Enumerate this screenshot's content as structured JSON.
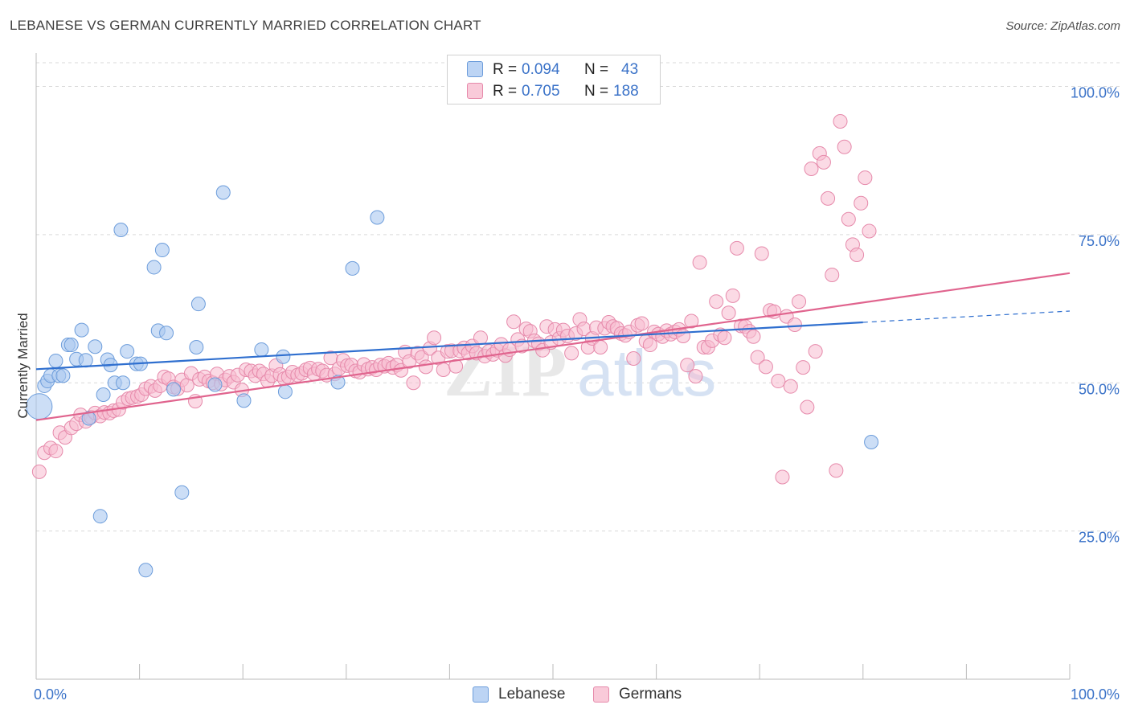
{
  "header": {
    "title": "LEBANESE VS GERMAN CURRENTLY MARRIED CORRELATION CHART",
    "source": "Source: ZipAtlas.com"
  },
  "legend_top": {
    "rows": [
      {
        "r_label": "R =",
        "r_value": "0.094",
        "n_label": "N =",
        "n_value": "43"
      },
      {
        "r_label": "R =",
        "r_value": "0.705",
        "n_label": "N =",
        "n_value": "188"
      }
    ]
  },
  "legend_bottom": {
    "items": [
      "Lebanese",
      "Germans"
    ]
  },
  "watermark": {
    "zip": "ZIP",
    "atlas": "atlas"
  },
  "colors": {
    "lebanese_fill": "#aac8f0",
    "lebanese_stroke": "#6d9ddb",
    "lebanese_line": "#2f6fcf",
    "german_fill": "#f7bcd0",
    "german_stroke": "#e68aab",
    "german_line": "#e0648e",
    "tick_label": "#3a72c8",
    "grid": "#d9d9d9"
  },
  "chart_data": {
    "type": "scatter",
    "title": "LEBANESE VS GERMAN CURRENTLY MARRIED CORRELATION CHART",
    "xlabel": "",
    "ylabel": "Currently Married",
    "xlim": [
      0,
      100
    ],
    "ylim": [
      0,
      104
    ],
    "x_tick_labels": [
      {
        "value": 0,
        "label": "0.0%"
      },
      {
        "value": 100,
        "label": "100.0%"
      }
    ],
    "y_tick_labels": [
      {
        "value": 25,
        "label": "25.0%"
      },
      {
        "value": 50,
        "label": "50.0%"
      },
      {
        "value": 75,
        "label": "75.0%"
      },
      {
        "value": 100,
        "label": "100.0%"
      }
    ],
    "grid": "horizontal dashed",
    "legend_position": "bottom",
    "series": [
      {
        "name": "Lebanese",
        "r": 0.094,
        "n": 43,
        "trend": {
          "x": [
            0,
            80
          ],
          "y": [
            52.3,
            60.2
          ],
          "dashed_to": [
            100,
            62.1
          ]
        },
        "points": [
          [
            0.3,
            46.0
          ],
          [
            0.8,
            49.5
          ],
          [
            1.1,
            50.3
          ],
          [
            1.4,
            51.2
          ],
          [
            1.9,
            53.7
          ],
          [
            2.2,
            51.2
          ],
          [
            2.6,
            51.2
          ],
          [
            3.1,
            56.4
          ],
          [
            3.4,
            56.4
          ],
          [
            3.9,
            54.0
          ],
          [
            4.4,
            58.9
          ],
          [
            4.8,
            53.8
          ],
          [
            5.1,
            44.0
          ],
          [
            5.7,
            56.1
          ],
          [
            6.2,
            27.5
          ],
          [
            6.5,
            48.0
          ],
          [
            6.9,
            53.9
          ],
          [
            7.2,
            53.0
          ],
          [
            7.6,
            50.0
          ],
          [
            8.2,
            75.8
          ],
          [
            8.4,
            50.0
          ],
          [
            8.8,
            55.3
          ],
          [
            9.7,
            53.2
          ],
          [
            10.1,
            53.2
          ],
          [
            10.6,
            18.4
          ],
          [
            11.4,
            69.5
          ],
          [
            11.8,
            58.8
          ],
          [
            12.2,
            72.4
          ],
          [
            12.6,
            58.4
          ],
          [
            13.3,
            48.9
          ],
          [
            14.1,
            31.5
          ],
          [
            15.5,
            56.0
          ],
          [
            15.7,
            63.3
          ],
          [
            17.3,
            49.7
          ],
          [
            18.1,
            82.1
          ],
          [
            20.1,
            47.0
          ],
          [
            21.8,
            55.6
          ],
          [
            23.9,
            54.4
          ],
          [
            24.1,
            48.5
          ],
          [
            29.2,
            50.1
          ],
          [
            30.6,
            69.3
          ],
          [
            33.0,
            77.9
          ],
          [
            80.8,
            40.0
          ]
        ]
      },
      {
        "name": "Germans",
        "r": 0.705,
        "n": 188,
        "trend": {
          "x": [
            0,
            100
          ],
          "y": [
            43.7,
            68.5
          ]
        },
        "points": [
          [
            0.3,
            35.0
          ],
          [
            0.8,
            38.2
          ],
          [
            1.4,
            39.0
          ],
          [
            1.9,
            38.5
          ],
          [
            2.3,
            41.6
          ],
          [
            2.8,
            40.8
          ],
          [
            3.4,
            42.4
          ],
          [
            3.9,
            43.1
          ],
          [
            4.3,
            44.6
          ],
          [
            4.8,
            43.5
          ],
          [
            5.3,
            44.2
          ],
          [
            5.7,
            44.9
          ],
          [
            6.2,
            44.4
          ],
          [
            6.6,
            45.0
          ],
          [
            7.1,
            44.9
          ],
          [
            7.5,
            45.3
          ],
          [
            8.0,
            45.5
          ],
          [
            8.4,
            46.7
          ],
          [
            8.9,
            47.3
          ],
          [
            9.3,
            47.5
          ],
          [
            9.8,
            47.7
          ],
          [
            10.2,
            48.0
          ],
          [
            10.6,
            49.0
          ],
          [
            11.1,
            49.4
          ],
          [
            11.5,
            48.7
          ],
          [
            12.0,
            49.5
          ],
          [
            12.4,
            51.0
          ],
          [
            12.8,
            50.7
          ],
          [
            13.3,
            49.3
          ],
          [
            13.7,
            49.0
          ],
          [
            14.1,
            50.5
          ],
          [
            14.6,
            49.6
          ],
          [
            15.0,
            51.6
          ],
          [
            15.4,
            46.9
          ],
          [
            15.8,
            50.6
          ],
          [
            16.3,
            51.0
          ],
          [
            16.7,
            50.3
          ],
          [
            17.1,
            50.0
          ],
          [
            17.5,
            51.5
          ],
          [
            17.9,
            49.8
          ],
          [
            18.3,
            50.5
          ],
          [
            18.7,
            51.1
          ],
          [
            19.1,
            50.1
          ],
          [
            19.5,
            51.3
          ],
          [
            19.9,
            48.8
          ],
          [
            20.3,
            52.2
          ],
          [
            20.8,
            52.0
          ],
          [
            21.2,
            51.2
          ],
          [
            21.6,
            52.0
          ],
          [
            22.0,
            51.5
          ],
          [
            22.4,
            50.3
          ],
          [
            22.8,
            51.2
          ],
          [
            23.2,
            52.9
          ],
          [
            23.6,
            51.4
          ],
          [
            24.0,
            50.7
          ],
          [
            24.4,
            51.0
          ],
          [
            24.8,
            51.8
          ],
          [
            25.3,
            51.3
          ],
          [
            25.7,
            51.6
          ],
          [
            26.1,
            52.2
          ],
          [
            26.5,
            52.5
          ],
          [
            26.9,
            51.5
          ],
          [
            27.3,
            52.3
          ],
          [
            27.7,
            52.0
          ],
          [
            28.1,
            51.3
          ],
          [
            28.5,
            54.2
          ],
          [
            28.9,
            51.5
          ],
          [
            29.3,
            52.4
          ],
          [
            29.7,
            53.8
          ],
          [
            30.1,
            52.9
          ],
          [
            30.5,
            53.0
          ],
          [
            30.9,
            52.0
          ],
          [
            31.3,
            51.8
          ],
          [
            31.7,
            53.1
          ],
          [
            32.1,
            52.3
          ],
          [
            32.5,
            52.6
          ],
          [
            32.9,
            52.2
          ],
          [
            33.3,
            53.0
          ],
          [
            33.7,
            52.8
          ],
          [
            34.1,
            53.3
          ],
          [
            34.5,
            52.6
          ],
          [
            34.9,
            53.0
          ],
          [
            35.3,
            52.1
          ],
          [
            35.7,
            55.2
          ],
          [
            36.1,
            53.6
          ],
          [
            36.5,
            50.0
          ],
          [
            36.9,
            55.0
          ],
          [
            37.3,
            54.3
          ],
          [
            37.7,
            52.7
          ],
          [
            38.1,
            55.8
          ],
          [
            38.5,
            57.6
          ],
          [
            38.9,
            54.2
          ],
          [
            39.4,
            52.2
          ],
          [
            39.8,
            55.3
          ],
          [
            40.2,
            55.4
          ],
          [
            40.6,
            52.8
          ],
          [
            41.0,
            55.4
          ],
          [
            41.4,
            55.9
          ],
          [
            41.8,
            55.0
          ],
          [
            42.2,
            56.2
          ],
          [
            42.6,
            55.0
          ],
          [
            43.0,
            57.6
          ],
          [
            43.4,
            54.5
          ],
          [
            43.8,
            55.3
          ],
          [
            44.2,
            54.8
          ],
          [
            44.6,
            55.5
          ],
          [
            45.0,
            56.5
          ],
          [
            45.4,
            54.6
          ],
          [
            45.8,
            55.6
          ],
          [
            46.2,
            60.3
          ],
          [
            46.6,
            57.3
          ],
          [
            47.0,
            56.2
          ],
          [
            47.4,
            59.1
          ],
          [
            47.8,
            58.7
          ],
          [
            48.2,
            57.1
          ],
          [
            48.6,
            56.6
          ],
          [
            49.0,
            55.5
          ],
          [
            49.4,
            59.5
          ],
          [
            49.8,
            56.8
          ],
          [
            50.2,
            59.0
          ],
          [
            50.6,
            57.5
          ],
          [
            51.0,
            58.9
          ],
          [
            51.4,
            57.9
          ],
          [
            51.8,
            55.0
          ],
          [
            52.2,
            58.3
          ],
          [
            52.6,
            60.7
          ],
          [
            53.0,
            59.1
          ],
          [
            53.4,
            56.0
          ],
          [
            53.8,
            57.5
          ],
          [
            54.2,
            59.3
          ],
          [
            54.6,
            56.0
          ],
          [
            55.0,
            59.2
          ],
          [
            55.4,
            60.2
          ],
          [
            55.8,
            59.5
          ],
          [
            56.2,
            59.2
          ],
          [
            56.6,
            58.3
          ],
          [
            57.0,
            58.0
          ],
          [
            57.4,
            58.6
          ],
          [
            57.8,
            54.1
          ],
          [
            58.2,
            59.7
          ],
          [
            58.6,
            60.0
          ],
          [
            59.0,
            57.0
          ],
          [
            59.4,
            56.4
          ],
          [
            59.8,
            58.6
          ],
          [
            60.2,
            58.2
          ],
          [
            60.6,
            57.8
          ],
          [
            61.0,
            58.8
          ],
          [
            61.4,
            58.2
          ],
          [
            61.8,
            58.6
          ],
          [
            62.2,
            59.0
          ],
          [
            62.6,
            57.9
          ],
          [
            63.0,
            53.0
          ],
          [
            63.4,
            60.4
          ],
          [
            63.8,
            51.1
          ],
          [
            64.2,
            70.3
          ],
          [
            64.6,
            56.0
          ],
          [
            65.0,
            56.0
          ],
          [
            65.4,
            57.1
          ],
          [
            65.8,
            63.7
          ],
          [
            66.2,
            58.1
          ],
          [
            66.6,
            57.6
          ],
          [
            67.0,
            61.8
          ],
          [
            67.4,
            64.7
          ],
          [
            67.8,
            72.7
          ],
          [
            68.2,
            59.6
          ],
          [
            68.6,
            59.5
          ],
          [
            69.0,
            58.7
          ],
          [
            69.4,
            57.8
          ],
          [
            69.8,
            54.3
          ],
          [
            70.2,
            71.8
          ],
          [
            70.6,
            52.7
          ],
          [
            71.0,
            62.2
          ],
          [
            71.4,
            62.0
          ],
          [
            71.8,
            50.3
          ],
          [
            72.2,
            34.1
          ],
          [
            72.6,
            61.2
          ],
          [
            73.0,
            49.4
          ],
          [
            73.4,
            59.8
          ],
          [
            73.8,
            63.7
          ],
          [
            74.2,
            52.6
          ],
          [
            74.6,
            45.9
          ],
          [
            75.0,
            86.1
          ],
          [
            75.4,
            55.3
          ],
          [
            75.8,
            88.7
          ],
          [
            76.2,
            87.2
          ],
          [
            76.6,
            81.1
          ],
          [
            77.0,
            68.2
          ],
          [
            77.4,
            35.2
          ],
          [
            77.8,
            94.1
          ],
          [
            78.2,
            89.8
          ],
          [
            78.6,
            77.6
          ],
          [
            79.0,
            73.3
          ],
          [
            79.4,
            71.6
          ],
          [
            79.8,
            80.3
          ],
          [
            80.2,
            84.6
          ],
          [
            80.6,
            75.6
          ]
        ]
      }
    ]
  }
}
